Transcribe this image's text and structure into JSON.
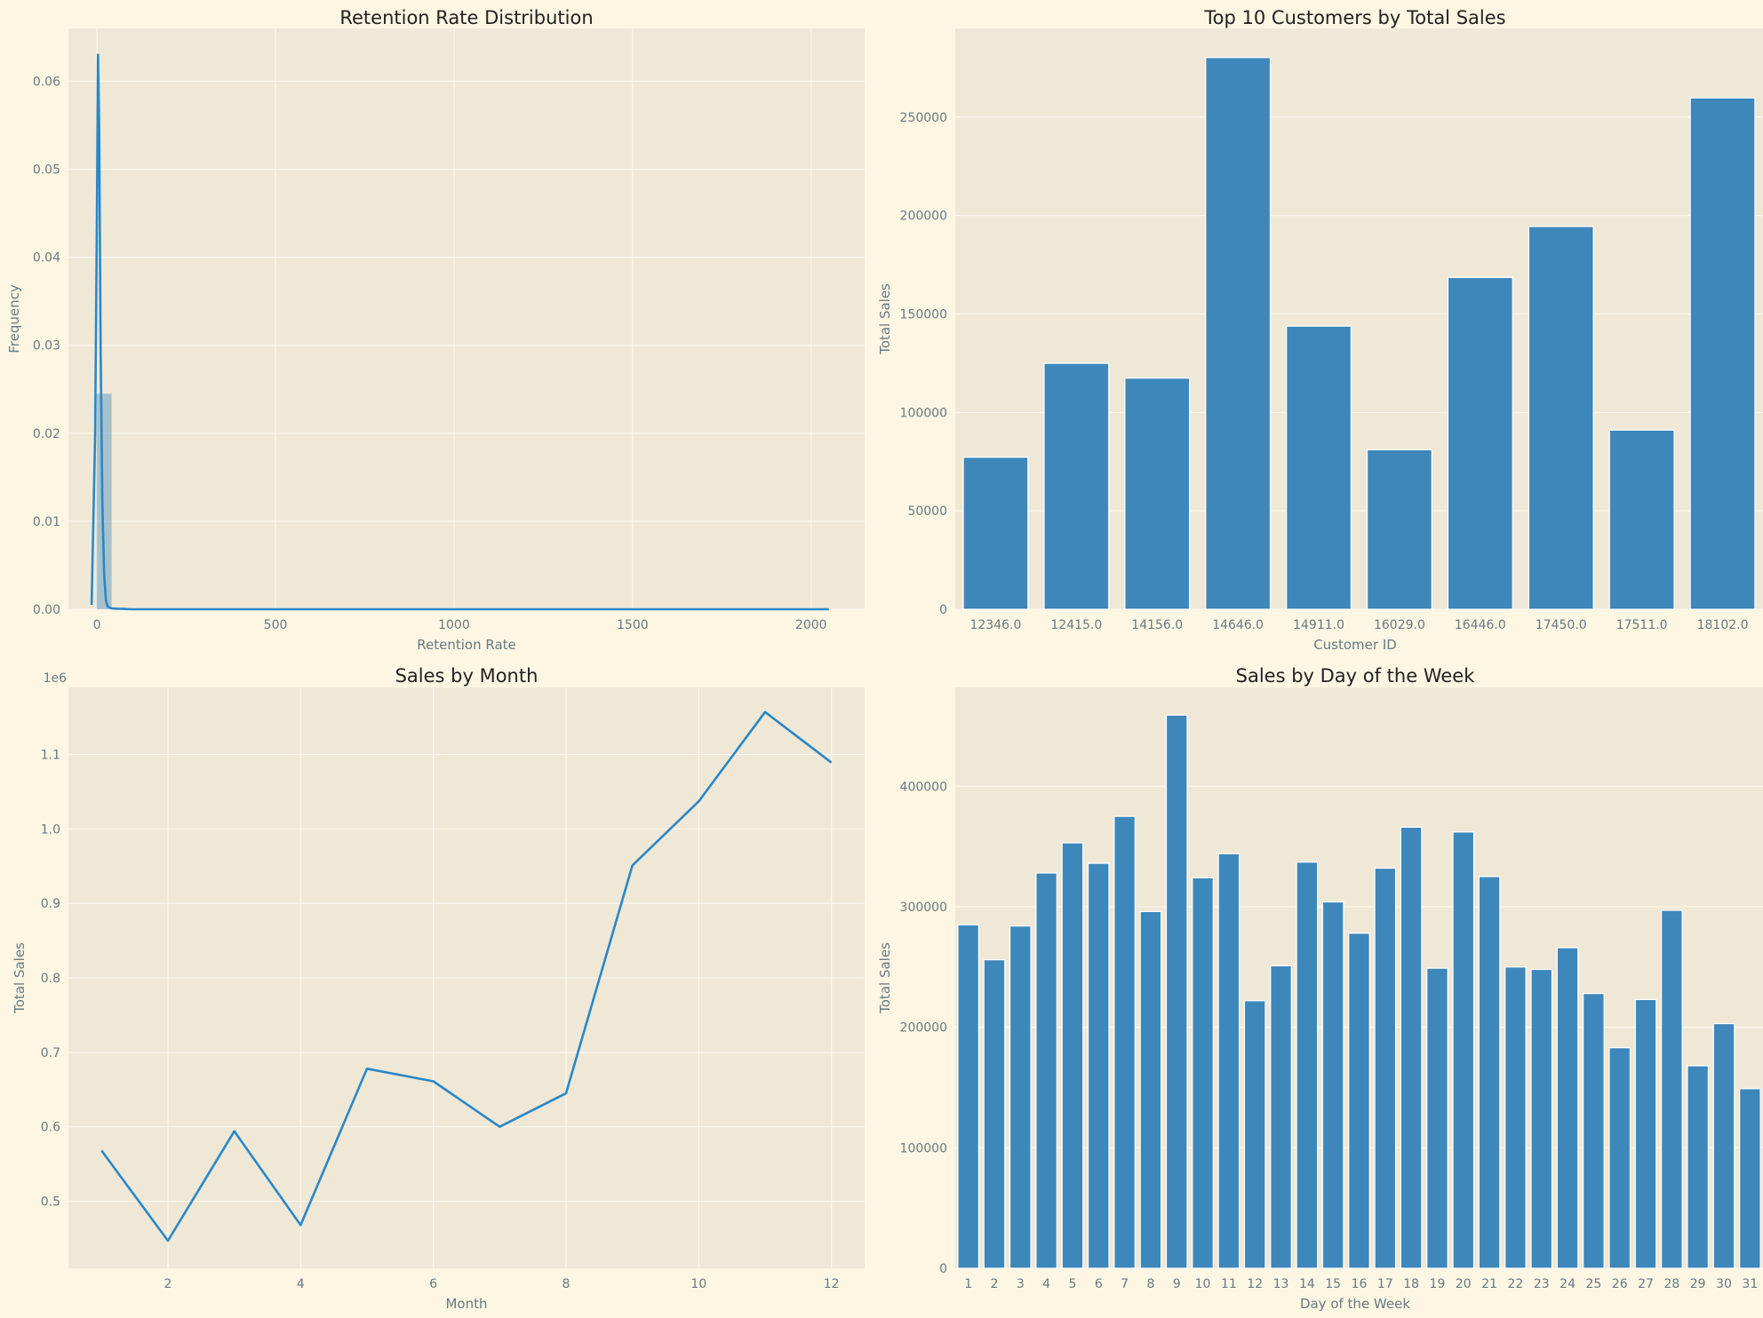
{
  "colors": {
    "figure_bg": "#fdf6e3",
    "axes_bg": "#efe8d6",
    "grid": "#fbf8ef",
    "bar": "#3d87bb",
    "line": "#2a87c8",
    "text": "#657b83",
    "title": "#222222"
  },
  "chart_data": [
    {
      "id": "retention",
      "type": "histogram",
      "title": "Retention Rate Distribution",
      "xlabel": "Retention Rate",
      "ylabel": "Frequency",
      "xlim": [
        -80,
        2150
      ],
      "ylim": [
        0,
        0.066
      ],
      "xticks": [
        0,
        500,
        1000,
        1500,
        2000
      ],
      "yticks": [
        0,
        0.01,
        0.02,
        0.03,
        0.04,
        0.05,
        0.06
      ],
      "ytick_labels": [
        "0.00",
        "0.01",
        "0.02",
        "0.03",
        "0.04",
        "0.05",
        "0.06"
      ],
      "grid": true,
      "bins": [
        {
          "x0": -1,
          "x1": 41,
          "y": 0.0245
        },
        {
          "x0": 41,
          "x1": 83,
          "y": 0.0002
        },
        {
          "x0": 83,
          "x1": 125,
          "y": 0.0001
        },
        {
          "x0": 125,
          "x1": 2050,
          "y": 3e-05
        }
      ],
      "kde": {
        "x": [
          -15,
          -5,
          0,
          3,
          6,
          10,
          15,
          20,
          25,
          30,
          40,
          60,
          100,
          500,
          1000,
          1500,
          2050
        ],
        "y": [
          0.0005,
          0.02,
          0.045,
          0.063,
          0.055,
          0.03,
          0.012,
          0.004,
          0.001,
          0.0003,
          0.0001,
          5e-05,
          0.0,
          0.0,
          0.0,
          0.0,
          0.0
        ]
      }
    },
    {
      "id": "top-customers",
      "type": "bar",
      "title": "Top 10 Customers by Total Sales",
      "xlabel": "Customer ID",
      "ylabel": "Total Sales",
      "ylim": [
        0,
        295000
      ],
      "yticks": [
        0,
        50000,
        100000,
        150000,
        200000,
        250000
      ],
      "ytick_labels": [
        "0",
        "50000",
        "100000",
        "150000",
        "200000",
        "250000"
      ],
      "grid": true,
      "categories": [
        "12346.0",
        "12415.0",
        "14156.0",
        "14646.0",
        "14911.0",
        "16029.0",
        "16446.0",
        "17450.0",
        "17511.0",
        "18102.0"
      ],
      "values": [
        77200,
        124900,
        117400,
        280200,
        143800,
        81000,
        168500,
        194400,
        91000,
        259700
      ]
    },
    {
      "id": "sales-by-month",
      "type": "line",
      "title": "Sales by Month",
      "xlabel": "Month",
      "ylabel": "Total Sales",
      "offset_label": "1e6",
      "xlim": [
        0.5,
        12.5
      ],
      "ylim": [
        0.41,
        1.19
      ],
      "xticks": [
        2,
        4,
        6,
        8,
        10,
        12
      ],
      "yticks": [
        0.5,
        0.6,
        0.7,
        0.8,
        0.9,
        1.0,
        1.1
      ],
      "ytick_labels": [
        "0.5",
        "0.6",
        "0.7",
        "0.8",
        "0.9",
        "1.0",
        "1.1"
      ],
      "grid": true,
      "x": [
        1,
        2,
        3,
        4,
        5,
        6,
        7,
        8,
        9,
        10,
        11,
        12
      ],
      "values": [
        0.568,
        0.447,
        0.594,
        0.468,
        0.678,
        0.661,
        0.6,
        0.645,
        0.951,
        1.037,
        1.157,
        1.089
      ]
    },
    {
      "id": "sales-by-day",
      "type": "bar",
      "title": "Sales by Day of the Week",
      "xlabel": "Day of the Week",
      "ylabel": "Total Sales",
      "ylim": [
        0,
        482000
      ],
      "yticks": [
        0,
        100000,
        200000,
        300000,
        400000
      ],
      "ytick_labels": [
        "0",
        "100000",
        "200000",
        "300000",
        "400000"
      ],
      "grid": true,
      "categories": [
        "1",
        "2",
        "3",
        "4",
        "5",
        "6",
        "7",
        "8",
        "9",
        "10",
        "11",
        "12",
        "13",
        "14",
        "15",
        "16",
        "17",
        "18",
        "19",
        "20",
        "21",
        "22",
        "23",
        "24",
        "25",
        "26",
        "27",
        "28",
        "29",
        "30",
        "31"
      ],
      "values": [
        285000,
        256000,
        284000,
        328000,
        353000,
        336000,
        375000,
        296000,
        459000,
        324000,
        344000,
        222000,
        251000,
        337000,
        304000,
        278000,
        332000,
        366000,
        249000,
        362000,
        325000,
        250000,
        248000,
        266000,
        228000,
        183000,
        223000,
        297000,
        168000,
        203000,
        149000
      ]
    }
  ]
}
